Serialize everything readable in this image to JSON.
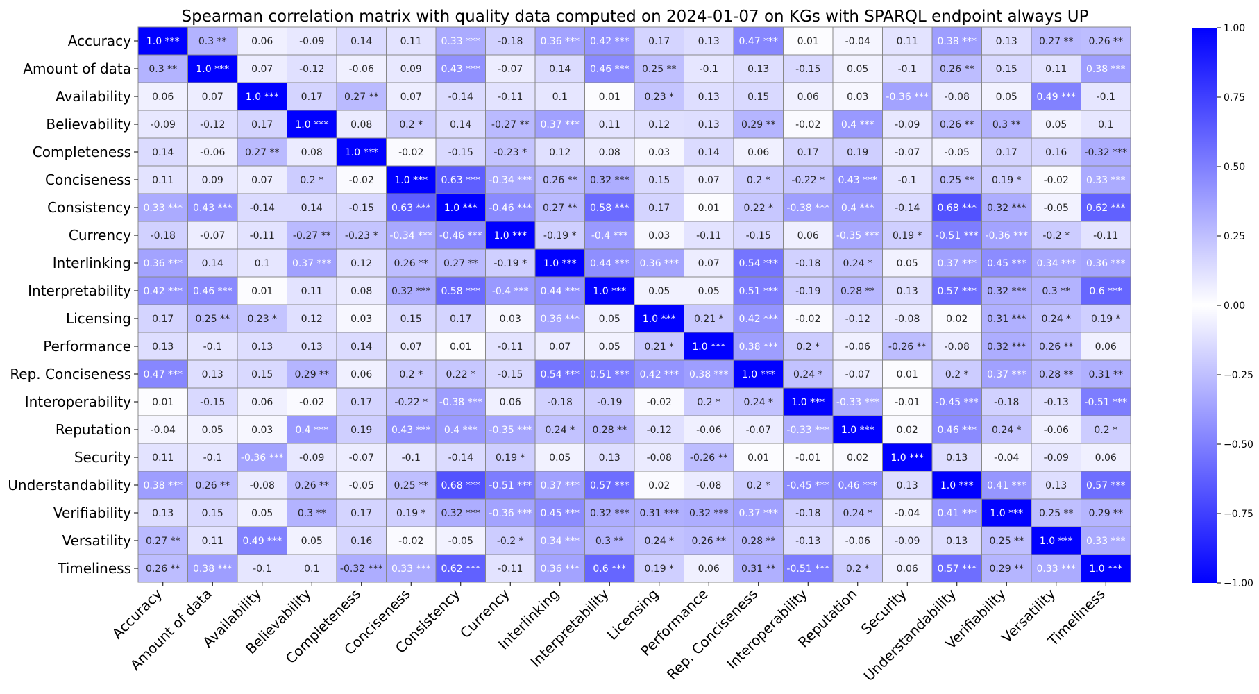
{
  "chart_data": {
    "type": "heatmap",
    "title": "Spearman correlation matrix with quality data computed on 2024-01-07 on KGs with SPARQL endpoint always UP",
    "labels": [
      "Accuracy",
      "Amount of data",
      "Availability",
      "Believability",
      "Completeness",
      "Conciseness",
      "Consistency",
      "Currency",
      "Interlinking",
      "Interpretability",
      "Licensing",
      "Performance",
      "Rep. Conciseness",
      "Interoperability",
      "Reputation",
      "Security",
      "Understandability",
      "Verifiability",
      "Versatility",
      "Timeliness"
    ],
    "cells": [
      [
        "1.0 ***",
        "0.3 **",
        "0.06",
        "-0.09",
        "0.14",
        "0.11",
        "0.33 ***",
        "-0.18",
        "0.36 ***",
        "0.42 ***",
        "0.17",
        "0.13",
        "0.47 ***",
        "0.01",
        "-0.04",
        "0.11",
        "0.38 ***",
        "0.13",
        "0.27 **",
        "0.26 **"
      ],
      [
        "0.3 **",
        "1.0 ***",
        "0.07",
        "-0.12",
        "-0.06",
        "0.09",
        "0.43 ***",
        "-0.07",
        "0.14",
        "0.46 ***",
        "0.25 **",
        "-0.1",
        "0.13",
        "-0.15",
        "0.05",
        "-0.1",
        "0.26 **",
        "0.15",
        "0.11",
        "0.38 ***"
      ],
      [
        "0.06",
        "0.07",
        "1.0 ***",
        "0.17",
        "0.27 **",
        "0.07",
        "-0.14",
        "-0.11",
        "0.1",
        "0.01",
        "0.23 *",
        "0.13",
        "0.15",
        "0.06",
        "0.03",
        "-0.36 ***",
        "-0.08",
        "0.05",
        "0.49 ***",
        "-0.1"
      ],
      [
        "-0.09",
        "-0.12",
        "0.17",
        "1.0 ***",
        "0.08",
        "0.2 *",
        "0.14",
        "-0.27 **",
        "0.37 ***",
        "0.11",
        "0.12",
        "0.13",
        "0.29 **",
        "-0.02",
        "0.4 ***",
        "-0.09",
        "0.26 **",
        "0.3 **",
        "0.05",
        "0.1"
      ],
      [
        "0.14",
        "-0.06",
        "0.27 **",
        "0.08",
        "1.0 ***",
        "-0.02",
        "-0.15",
        "-0.23 *",
        "0.12",
        "0.08",
        "0.03",
        "0.14",
        "0.06",
        "0.17",
        "0.19",
        "-0.07",
        "-0.05",
        "0.17",
        "0.16",
        "-0.32 ***"
      ],
      [
        "0.11",
        "0.09",
        "0.07",
        "0.2 *",
        "-0.02",
        "1.0 ***",
        "0.63 ***",
        "-0.34 ***",
        "0.26 **",
        "0.32 ***",
        "0.15",
        "0.07",
        "0.2 *",
        "-0.22 *",
        "0.43 ***",
        "-0.1",
        "0.25 **",
        "0.19 *",
        "-0.02",
        "0.33 ***"
      ],
      [
        "0.33 ***",
        "0.43 ***",
        "-0.14",
        "0.14",
        "-0.15",
        "0.63 ***",
        "1.0 ***",
        "-0.46 ***",
        "0.27 **",
        "0.58 ***",
        "0.17",
        "0.01",
        "0.22 *",
        "-0.38 ***",
        "0.4 ***",
        "-0.14",
        "0.68 ***",
        "0.32 ***",
        "-0.05",
        "0.62 ***"
      ],
      [
        "-0.18",
        "-0.07",
        "-0.11",
        "-0.27 **",
        "-0.23 *",
        "-0.34 ***",
        "-0.46 ***",
        "1.0 ***",
        "-0.19 *",
        "-0.4 ***",
        "0.03",
        "-0.11",
        "-0.15",
        "0.06",
        "-0.35 ***",
        "0.19 *",
        "-0.51 ***",
        "-0.36 ***",
        "-0.2 *",
        "-0.11"
      ],
      [
        "0.36 ***",
        "0.14",
        "0.1",
        "0.37 ***",
        "0.12",
        "0.26 **",
        "0.27 **",
        "-0.19 *",
        "1.0 ***",
        "0.44 ***",
        "0.36 ***",
        "0.07",
        "0.54 ***",
        "-0.18",
        "0.24 *",
        "0.05",
        "0.37 ***",
        "0.45 ***",
        "0.34 ***",
        "0.36 ***"
      ],
      [
        "0.42 ***",
        "0.46 ***",
        "0.01",
        "0.11",
        "0.08",
        "0.32 ***",
        "0.58 ***",
        "-0.4 ***",
        "0.44 ***",
        "1.0 ***",
        "0.05",
        "0.05",
        "0.51 ***",
        "-0.19",
        "0.28 **",
        "0.13",
        "0.57 ***",
        "0.32 ***",
        "0.3 **",
        "0.6 ***"
      ],
      [
        "0.17",
        "0.25 **",
        "0.23 *",
        "0.12",
        "0.03",
        "0.15",
        "0.17",
        "0.03",
        "0.36 ***",
        "0.05",
        "1.0 ***",
        "0.21 *",
        "0.42 ***",
        "-0.02",
        "-0.12",
        "-0.08",
        "0.02",
        "0.31 ***",
        "0.24 *",
        "0.19 *"
      ],
      [
        "0.13",
        "-0.1",
        "0.13",
        "0.13",
        "0.14",
        "0.07",
        "0.01",
        "-0.11",
        "0.07",
        "0.05",
        "0.21 *",
        "1.0 ***",
        "0.38 ***",
        "0.2 *",
        "-0.06",
        "-0.26 **",
        "-0.08",
        "0.32 ***",
        "0.26 **",
        "0.06"
      ],
      [
        "0.47 ***",
        "0.13",
        "0.15",
        "0.29 **",
        "0.06",
        "0.2 *",
        "0.22 *",
        "-0.15",
        "0.54 ***",
        "0.51 ***",
        "0.42 ***",
        "0.38 ***",
        "1.0 ***",
        "0.24 *",
        "-0.07",
        "0.01",
        "0.2 *",
        "0.37 ***",
        "0.28 **",
        "0.31 **"
      ],
      [
        "0.01",
        "-0.15",
        "0.06",
        "-0.02",
        "0.17",
        "-0.22 *",
        "-0.38 ***",
        "0.06",
        "-0.18",
        "-0.19",
        "-0.02",
        "0.2 *",
        "0.24 *",
        "1.0 ***",
        "-0.33 ***",
        "-0.01",
        "-0.45 ***",
        "-0.18",
        "-0.13",
        "-0.51 ***"
      ],
      [
        "-0.04",
        "0.05",
        "0.03",
        "0.4 ***",
        "0.19",
        "0.43 ***",
        "0.4 ***",
        "-0.35 ***",
        "0.24 *",
        "0.28 **",
        "-0.12",
        "-0.06",
        "-0.07",
        "-0.33 ***",
        "1.0 ***",
        "0.02",
        "0.46 ***",
        "0.24 *",
        "-0.06",
        "0.2 *"
      ],
      [
        "0.11",
        "-0.1",
        "-0.36 ***",
        "-0.09",
        "-0.07",
        "-0.1",
        "-0.14",
        "0.19 *",
        "0.05",
        "0.13",
        "-0.08",
        "-0.26 **",
        "0.01",
        "-0.01",
        "0.02",
        "1.0 ***",
        "0.13",
        "-0.04",
        "-0.09",
        "0.06"
      ],
      [
        "0.38 ***",
        "0.26 **",
        "-0.08",
        "0.26 **",
        "-0.05",
        "0.25 **",
        "0.68 ***",
        "-0.51 ***",
        "0.37 ***",
        "0.57 ***",
        "0.02",
        "-0.08",
        "0.2 *",
        "-0.45 ***",
        "0.46 ***",
        "0.13",
        "1.0 ***",
        "0.41 ***",
        "0.13",
        "0.57 ***"
      ],
      [
        "0.13",
        "0.15",
        "0.05",
        "0.3 **",
        "0.17",
        "0.19 *",
        "0.32 ***",
        "-0.36 ***",
        "0.45 ***",
        "0.32 ***",
        "0.31 ***",
        "0.32 ***",
        "0.37 ***",
        "-0.18",
        "0.24 *",
        "-0.04",
        "0.41 ***",
        "1.0 ***",
        "0.25 **",
        "0.29 **"
      ],
      [
        "0.27 **",
        "0.11",
        "0.49 ***",
        "0.05",
        "0.16",
        "-0.02",
        "-0.05",
        "-0.2 *",
        "0.34 ***",
        "0.3 **",
        "0.24 *",
        "0.26 **",
        "0.28 **",
        "-0.13",
        "-0.06",
        "-0.09",
        "0.13",
        "0.25 **",
        "1.0 ***",
        "0.33 ***"
      ],
      [
        "0.26 **",
        "0.38 ***",
        "-0.1",
        "0.1",
        "-0.32 ***",
        "0.33 ***",
        "0.62 ***",
        "-0.11",
        "0.36 ***",
        "0.6 ***",
        "0.19 *",
        "0.06",
        "0.31 **",
        "-0.51 ***",
        "0.2 *",
        "0.06",
        "0.57 ***",
        "0.29 **",
        "0.33 ***",
        "1.0 ***"
      ]
    ],
    "colorbar": {
      "ticks": [
        "1.00",
        "0.75",
        "0.50",
        "0.25",
        "0.00",
        "−0.25",
        "−0.50",
        "−0.75",
        "−1.00"
      ],
      "range": [
        -1,
        1
      ],
      "colors": {
        "low": "#0000ff",
        "mid": "#ffffff",
        "high": "#0000ff"
      }
    },
    "grid": true,
    "legend": "right"
  }
}
